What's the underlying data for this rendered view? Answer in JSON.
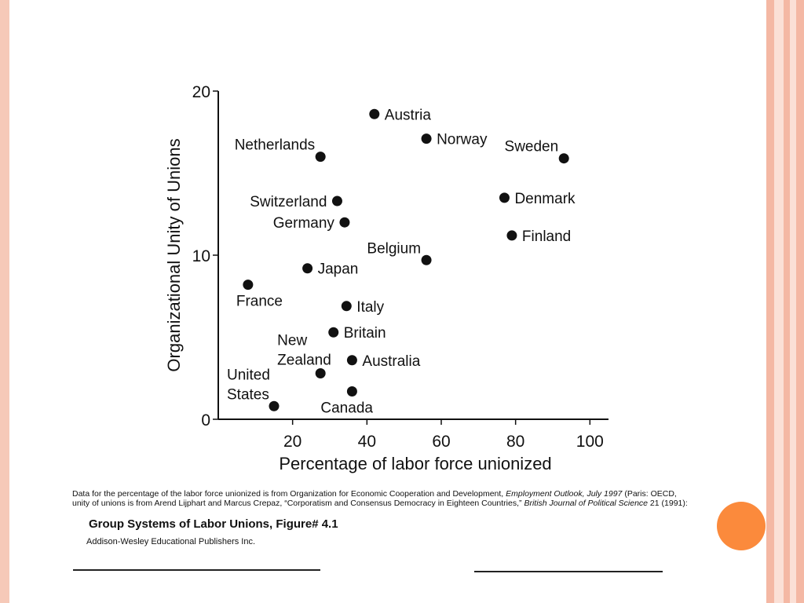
{
  "theme": {
    "left_border_color": "#f6c9b8",
    "stripe_colors": [
      "#f4b8a4",
      "#fbe0d6",
      "#f4b8a4",
      "#fbe0d6",
      "#f4b8a4"
    ],
    "accent_circle_color": "#fb8a3c",
    "marker_color": "#111111"
  },
  "chart_data": {
    "type": "scatter",
    "xlabel": "Percentage of labor force unionized",
    "ylabel": "Organizational Unity of Unions",
    "xlim": [
      0,
      105
    ],
    "ylim": [
      0,
      20
    ],
    "x_ticks": [
      20,
      40,
      60,
      80,
      100
    ],
    "x_tick_labels": [
      "20",
      "40",
      "60",
      "80",
      "100"
    ],
    "y_ticks": [
      0,
      10,
      20
    ],
    "y_tick_labels": [
      "0",
      "10",
      "20"
    ],
    "grid": false,
    "points": [
      {
        "label": [
          "Austria"
        ],
        "x": 42,
        "y": 18.6,
        "label_pos": "right"
      },
      {
        "label": [
          "Norway"
        ],
        "x": 56,
        "y": 17.1,
        "label_pos": "right"
      },
      {
        "label": [
          "Sweden"
        ],
        "x": 93,
        "y": 15.9,
        "label_pos": "above-left"
      },
      {
        "label": [
          "Netherlands"
        ],
        "x": 27.5,
        "y": 16.0,
        "label_pos": "above-left"
      },
      {
        "label": [
          "Switzerland"
        ],
        "x": 32,
        "y": 13.3,
        "label_pos": "left"
      },
      {
        "label": [
          "Germany"
        ],
        "x": 34,
        "y": 12.0,
        "label_pos": "left"
      },
      {
        "label": [
          "Denmark"
        ],
        "x": 77,
        "y": 13.5,
        "label_pos": "right"
      },
      {
        "label": [
          "Finland"
        ],
        "x": 79,
        "y": 11.2,
        "label_pos": "right"
      },
      {
        "label": [
          "Belgium"
        ],
        "x": 56,
        "y": 9.7,
        "label_pos": "above-left"
      },
      {
        "label": [
          "Japan"
        ],
        "x": 24,
        "y": 9.2,
        "label_pos": "right"
      },
      {
        "label": [
          "France"
        ],
        "x": 8,
        "y": 8.2,
        "label_pos": "below"
      },
      {
        "label": [
          "Italy"
        ],
        "x": 34.5,
        "y": 6.9,
        "label_pos": "right"
      },
      {
        "label": [
          "Britain"
        ],
        "x": 31,
        "y": 5.3,
        "label_pos": "right"
      },
      {
        "label": [
          "New",
          "Zealand"
        ],
        "x": 27.5,
        "y": 2.8,
        "label_pos": "above-left"
      },
      {
        "label": [
          "Australia"
        ],
        "x": 36,
        "y": 3.6,
        "label_pos": "right"
      },
      {
        "label": [
          "Canada"
        ],
        "x": 36,
        "y": 1.7,
        "label_pos": "below"
      },
      {
        "label": [
          "United",
          "States"
        ],
        "x": 15,
        "y": 0.8,
        "label_pos": "above-left"
      }
    ]
  },
  "caption": {
    "source_line1_a": "Data for the percentage of the labor force unionized is from Organization for Economic Cooperation and Development, ",
    "source_line1_italic": "Employment Outlook, July 1997",
    "source_line1_b": " (Paris: OECD,",
    "source_line2_a": "unity of unions is from Arend Lijphart and Marcus Crepaz, “Corporatism and Consensus Democracy in Eighteen Countries,” ",
    "source_line2_italic": "British Journal of Political Science",
    "source_line2_b": " 21 (1991):",
    "figure_title": "Group Systems of Labor Unions, Figure# 4.1",
    "publisher": "Addison-Wesley Educational Publishers Inc."
  }
}
